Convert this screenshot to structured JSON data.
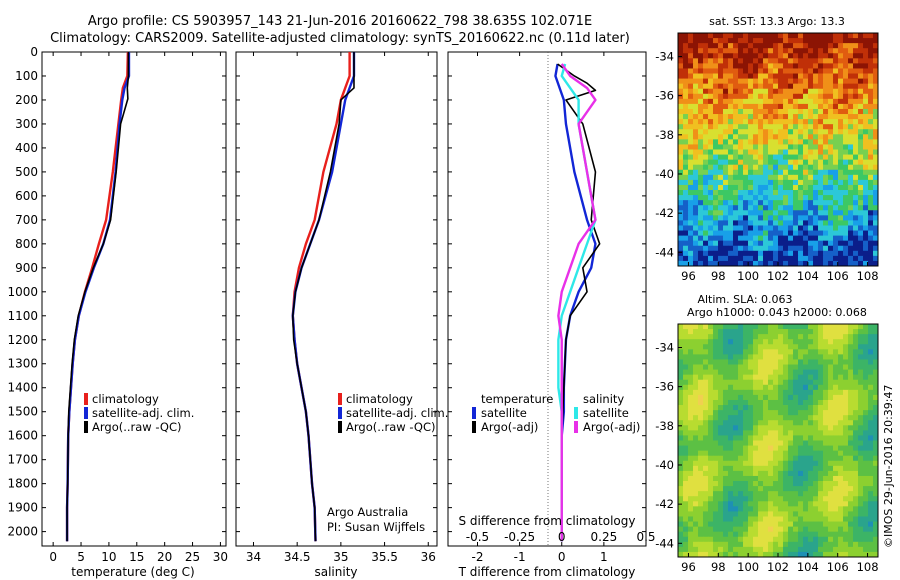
{
  "header": {
    "line1": "Argo profile: CS 5903957_143 21-Jun-2016 20160622_798 38.635S 102.071E",
    "line2": "Climatology: CARS2009. Satellite-adjusted climatology: synTS_20160622.nc (0.11d later)"
  },
  "colors": {
    "red": "#e8201c",
    "blue": "#1226d6",
    "black": "#000000",
    "cyan": "#2ee8e8",
    "magenta": "#e830e8"
  },
  "chart_data": [
    {
      "type": "line",
      "xlabel": "temperature (deg C)",
      "xlim": [
        -2,
        31
      ],
      "ylim": [
        2060,
        0
      ],
      "xticks": [
        0,
        5,
        10,
        15,
        20,
        25,
        30
      ],
      "yticks": [
        0,
        100,
        200,
        300,
        400,
        500,
        600,
        700,
        800,
        900,
        1000,
        1100,
        1200,
        1300,
        1400,
        1500,
        1600,
        1700,
        1800,
        1900,
        2000
      ],
      "series": [
        {
          "name": "climatology",
          "color": "red",
          "x": [
            13.4,
            13.3,
            12.5,
            12.2,
            11.7,
            10.7,
            9.5,
            8.2,
            7.0,
            5.7,
            4.6,
            3.9,
            3.5,
            3.2,
            2.9,
            2.7,
            2.6,
            2.5,
            2.5
          ],
          "y": [
            0,
            100,
            150,
            200,
            300,
            500,
            700,
            800,
            900,
            1000,
            1100,
            1200,
            1300,
            1400,
            1500,
            1600,
            1800,
            1900,
            2040
          ]
        },
        {
          "name": "satellite-adj. clim.",
          "color": "blue",
          "x": [
            13.6,
            13.6,
            12.8,
            12.4,
            11.9,
            11.2,
            10.2,
            9.0,
            7.3,
            5.8,
            4.6,
            3.9,
            3.5,
            3.2,
            2.9,
            2.7,
            2.6,
            2.5,
            2.5
          ],
          "y": [
            0,
            100,
            150,
            200,
            300,
            500,
            700,
            800,
            900,
            1000,
            1100,
            1200,
            1300,
            1400,
            1500,
            1600,
            1800,
            1900,
            2040
          ]
        },
        {
          "name": "Argo(..raw -QC)",
          "color": "black",
          "x": [
            13.5,
            13.5,
            13.3,
            13.4,
            12.1,
            11.3,
            10.3,
            9.0,
            7.2,
            5.7,
            4.5,
            3.8,
            3.4,
            3.1,
            2.8,
            2.7,
            2.6,
            2.5,
            2.5
          ],
          "y": [
            0,
            100,
            150,
            195,
            300,
            500,
            700,
            800,
            900,
            1000,
            1100,
            1200,
            1300,
            1400,
            1500,
            1600,
            1800,
            1900,
            2040
          ]
        }
      ]
    },
    {
      "type": "line",
      "xlabel": "salinity",
      "xlim": [
        33.8,
        36.1
      ],
      "ylim": [
        2060,
        0
      ],
      "xticks": [
        34,
        34.5,
        35,
        35.5,
        36
      ],
      "xtick_labels": [
        "34",
        "34.5",
        "35",
        "35.5",
        "36"
      ],
      "series": [
        {
          "name": "climatology",
          "color": "red",
          "x": [
            35.1,
            35.1,
            35.05,
            35.0,
            34.95,
            34.8,
            34.7,
            34.6,
            34.52,
            34.47,
            34.45,
            34.47,
            34.5,
            34.55,
            34.6,
            34.63,
            34.67,
            34.7,
            34.71
          ],
          "y": [
            0,
            100,
            150,
            200,
            300,
            500,
            700,
            800,
            900,
            1000,
            1100,
            1200,
            1300,
            1400,
            1500,
            1600,
            1800,
            1900,
            2040
          ]
        },
        {
          "name": "satellite-adj. clim.",
          "color": "blue",
          "x": [
            35.15,
            35.15,
            35.1,
            35.05,
            35.0,
            34.9,
            34.75,
            34.65,
            34.55,
            34.48,
            34.45,
            34.47,
            34.5,
            34.55,
            34.6,
            34.63,
            34.67,
            34.7,
            34.71
          ],
          "y": [
            0,
            100,
            150,
            200,
            300,
            500,
            700,
            800,
            900,
            1000,
            1100,
            1200,
            1300,
            1400,
            1500,
            1600,
            1800,
            1900,
            2040
          ]
        },
        {
          "name": "Argo(..raw -QC)",
          "color": "black",
          "x": [
            35.15,
            35.15,
            35.15,
            35.0,
            34.98,
            34.88,
            34.75,
            34.65,
            34.55,
            34.48,
            34.45,
            34.46,
            34.5,
            34.55,
            34.6,
            34.63,
            34.67,
            34.7,
            34.71
          ],
          "y": [
            0,
            100,
            150,
            200,
            300,
            500,
            700,
            800,
            900,
            1000,
            1100,
            1200,
            1300,
            1400,
            1500,
            1600,
            1800,
            1900,
            2040
          ]
        }
      ],
      "annotation": [
        "Argo Australia",
        "PI: Susan Wijffels"
      ]
    },
    {
      "type": "line",
      "xlabel": "T difference from climatology",
      "top_xlabel": "S difference from climatology",
      "xlim": [
        -2.7,
        2.0
      ],
      "ylim": [
        2060,
        0
      ],
      "xticks": [
        -2,
        -1,
        0,
        1
      ],
      "top_xticks": [
        -0.5,
        -0.25,
        0,
        0.25,
        0.5
      ],
      "legend_titles": [
        "temperature",
        "salinity"
      ],
      "series": [
        {
          "name": "satellite",
          "color": "blue",
          "var": "temperature",
          "x": [
            -0.1,
            -0.15,
            -0.05,
            0.05,
            0.1,
            0.3,
            0.6,
            0.8,
            0.7,
            0.4,
            0.2,
            0.1,
            0.05,
            0.05,
            0.0,
            0.0,
            0.0,
            0.0
          ],
          "y": [
            50,
            100,
            150,
            200,
            300,
            500,
            700,
            800,
            900,
            1000,
            1100,
            1200,
            1400,
            1500,
            1600,
            1800,
            1900,
            2040
          ]
        },
        {
          "name": "Argo(-adj)",
          "color": "black",
          "var": "temperature",
          "x": [
            -0.1,
            0.3,
            0.6,
            0.8,
            0.1,
            0.5,
            0.8,
            0.7,
            0.9,
            0.5,
            0.6,
            0.2,
            0.1,
            0.05,
            0.0,
            0.0,
            0.0,
            0.0,
            0.0
          ],
          "y": [
            50,
            100,
            130,
            160,
            200,
            300,
            500,
            700,
            800,
            900,
            1000,
            1100,
            1200,
            1400,
            1600,
            1800,
            1900,
            2000,
            2040
          ]
        },
        {
          "name": "satellite",
          "color": "cyan",
          "var": "salinity",
          "x": [
            0.02,
            0.0,
            0.05,
            0.1,
            0.1,
            0.15,
            0.2,
            0.15,
            0.1,
            0.05,
            0.0,
            -0.02,
            -0.02,
            0.0,
            0.0,
            0.0,
            0.0
          ],
          "y": [
            50,
            100,
            150,
            200,
            300,
            500,
            700,
            800,
            900,
            1000,
            1100,
            1200,
            1400,
            1500,
            1600,
            1800,
            2040
          ]
        },
        {
          "name": "Argo(-adj)",
          "color": "magenta",
          "var": "salinity",
          "x": [
            0.0,
            0.05,
            0.15,
            0.2,
            0.1,
            0.15,
            0.2,
            0.1,
            0.05,
            0.0,
            -0.02,
            0.0,
            0.0,
            0.0,
            0.0
          ],
          "y": [
            50,
            100,
            150,
            200,
            300,
            500,
            700,
            800,
            900,
            1000,
            1100,
            1200,
            1400,
            1600,
            2040
          ]
        }
      ]
    },
    {
      "type": "heatmap",
      "title": "sat. SST: 13.3 Argo: 13.3",
      "xticks": [
        96,
        98,
        100,
        102,
        104,
        106,
        108
      ],
      "yticks": [
        -34,
        -36,
        -38,
        -40,
        -42,
        -44
      ],
      "xlim": [
        95.3,
        108.7
      ],
      "ylim": [
        -44.7,
        -32.8
      ]
    },
    {
      "type": "heatmap",
      "title": "Altim. SLA: 0.063",
      "subtitle": "Argo h1000: 0.043 h2000: 0.068",
      "xticks": [
        96,
        98,
        100,
        102,
        104,
        106,
        108
      ],
      "yticks": [
        -34,
        -36,
        -38,
        -40,
        -42,
        -44
      ],
      "xlim": [
        95.3,
        108.7
      ],
      "ylim": [
        -44.7,
        -32.8
      ]
    }
  ],
  "legend_labels": {
    "climatology": "climatology",
    "satellite": "satellite-adj. clim.",
    "argo": "Argo(..raw -QC)",
    "temperature": "temperature",
    "salinity": "salinity",
    "sat_short": "satellite",
    "argo_adj": "Argo(-adj)"
  },
  "credit": "©IMOS 29-Jun-2016 20:39:47"
}
